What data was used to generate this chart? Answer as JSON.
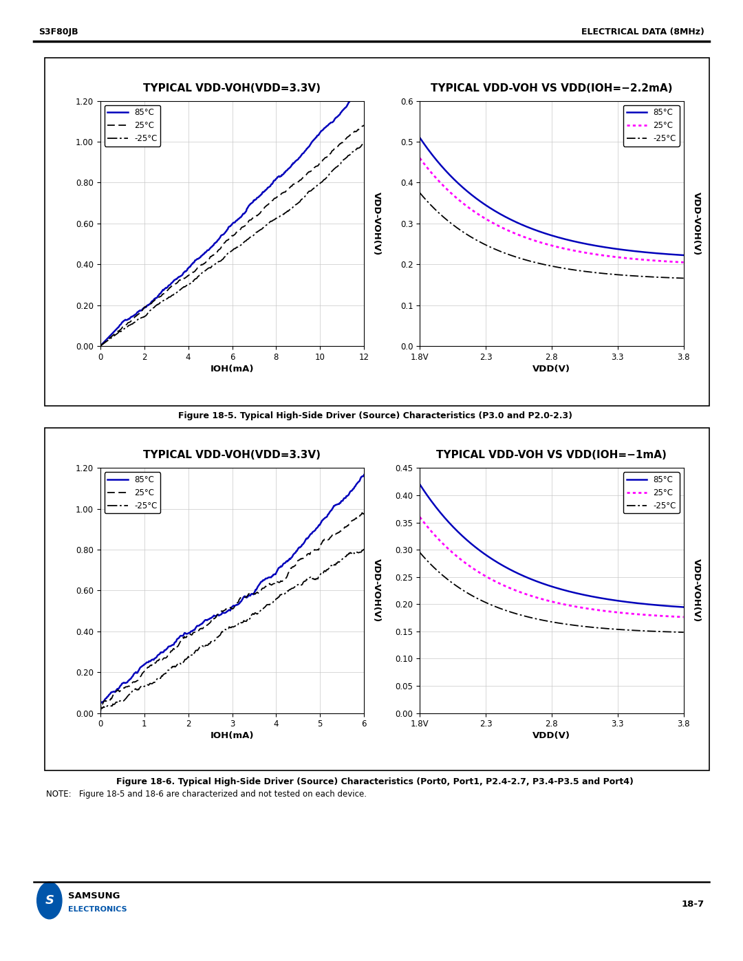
{
  "page_bg": "#ffffff",
  "header_left": "S3F80JB",
  "header_right": "ELECTRICAL DATA (8MHz)",
  "footer_text": "18-7",
  "fig1_title_left": "TYPICAL VDD-VOH(VDD=3.3V)",
  "fig1_title_right": "TYPICAL VDD-VOH VS VDD(IOH=−2.2mA)",
  "fig1_caption": "Figure 18-5. Typical High-Side Driver (Source) Characteristics (P3.0 and P2.0-2.3)",
  "fig2_title_left": "TYPICAL VDD-VOH(VDD=3.3V)",
  "fig2_title_right": "TYPICAL VDD-VOH VS VDD(IOH=−1mA)",
  "fig2_caption": "Figure 18-6. Typical High-Side Driver (Source) Characteristics (Port0, Port1, P2.4-2.7, P3.4-P3.5 and Port4)",
  "note_text": "NOTE:   Figure 18-5 and 18-6 are characterized and not tested on each device.",
  "colors": {
    "blue": "#0000bb",
    "magenta": "#ff00ff",
    "black": "#000000",
    "samsung_blue": "#0055aa"
  },
  "chart1_left": {
    "xlim": [
      0,
      12
    ],
    "ylim": [
      0.0,
      1.2
    ],
    "xticks": [
      0,
      2,
      4,
      6,
      8,
      10,
      12
    ],
    "yticks": [
      0.0,
      0.2,
      0.4,
      0.6,
      0.8,
      1.0,
      1.2
    ],
    "xlabel": "IOH(mA)",
    "ylabel": "VDD-VOH(V)",
    "legend": [
      "85°C",
      "25°C",
      "-25°C"
    ]
  },
  "chart1_right": {
    "xlim": [
      1.8,
      3.8
    ],
    "ylim": [
      0,
      0.6
    ],
    "xticks_labels": [
      "1.8V",
      "2.3",
      "2.8",
      "3.3",
      "3.8"
    ],
    "xticks_vals": [
      1.8,
      2.3,
      2.8,
      3.3,
      3.8
    ],
    "yticks": [
      0,
      0.1,
      0.2,
      0.3,
      0.4,
      0.5,
      0.6
    ],
    "xlabel": "VDD(V)",
    "ylabel": "VDD-VOH(V)",
    "legend": [
      "85°C",
      "25°C",
      "-25°C"
    ]
  },
  "chart2_left": {
    "xlim": [
      0,
      6
    ],
    "ylim": [
      0.0,
      1.2
    ],
    "xticks": [
      0,
      1,
      2,
      3,
      4,
      5,
      6
    ],
    "yticks": [
      0.0,
      0.2,
      0.4,
      0.6,
      0.8,
      1.0,
      1.2
    ],
    "xlabel": "IOH(mA)",
    "ylabel": "VDD-VOH(V)",
    "legend": [
      "85°C",
      "25°C",
      "-25°C"
    ]
  },
  "chart2_right": {
    "xlim": [
      1.8,
      3.8
    ],
    "ylim": [
      0,
      0.45
    ],
    "xticks_labels": [
      "1.8V",
      "2.3",
      "2.8",
      "3.3",
      "3.8"
    ],
    "xticks_vals": [
      1.8,
      2.3,
      2.8,
      3.3,
      3.8
    ],
    "yticks": [
      0,
      0.05,
      0.1,
      0.15,
      0.2,
      0.25,
      0.3,
      0.35,
      0.4,
      0.45
    ],
    "xlabel": "VDD(V)",
    "ylabel": "VDD-VOH(V)",
    "legend": [
      "85°C",
      "25°C",
      "-25°C"
    ]
  }
}
